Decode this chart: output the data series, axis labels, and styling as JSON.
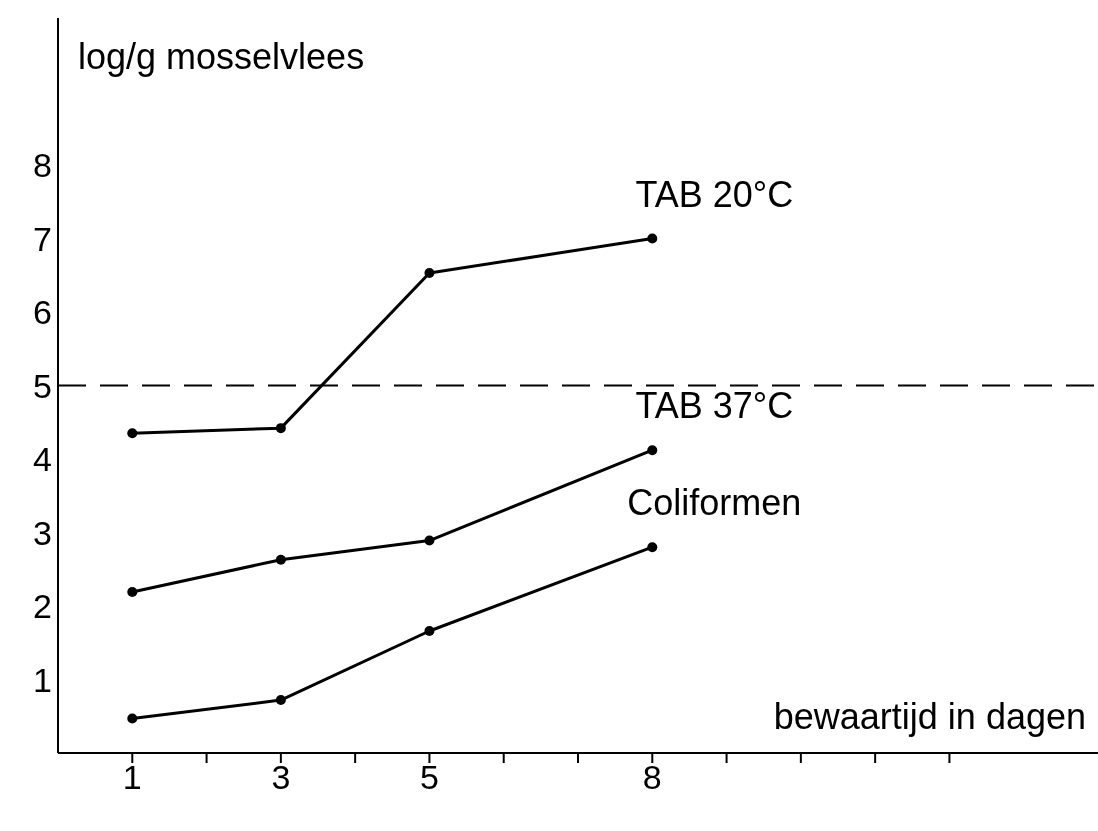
{
  "chart_data": {
    "type": "line",
    "ylabel": "log/g mosselvlees",
    "xlabel": "bewaartijd in dagen",
    "x": [
      1,
      3,
      5,
      8
    ],
    "series": [
      {
        "name": "TAB 20°C",
        "color": "#000000",
        "values": [
          4.35,
          4.42,
          6.53,
          7.0
        ]
      },
      {
        "name": "TAB 37°C",
        "color": "#000000",
        "values": [
          2.19,
          2.63,
          2.89,
          4.12
        ]
      },
      {
        "name": "Coliformen",
        "color": "#000000",
        "values": [
          0.47,
          0.72,
          1.66,
          2.8
        ]
      }
    ],
    "xlim": [
      0,
      14
    ],
    "xticks": [
      1,
      {
        "value": 2,
        "label": null
      },
      3,
      {
        "value": 4,
        "label": null
      },
      5,
      {
        "value": 6,
        "label": null
      },
      {
        "value": 7,
        "label": null
      },
      8,
      {
        "value": 9,
        "label": null
      },
      {
        "value": 10,
        "label": null
      },
      {
        "value": 11,
        "label": null
      },
      {
        "value": 12,
        "label": null
      }
    ],
    "ylim": [
      0,
      10
    ],
    "yticks": [
      1,
      2,
      3,
      4,
      5,
      6,
      7,
      8
    ],
    "ref_lines": [
      {
        "axis": "y",
        "value": 5,
        "line_style": "dashed",
        "color": "#000000"
      }
    ],
    "marker": "circle",
    "line_style": "solid"
  }
}
